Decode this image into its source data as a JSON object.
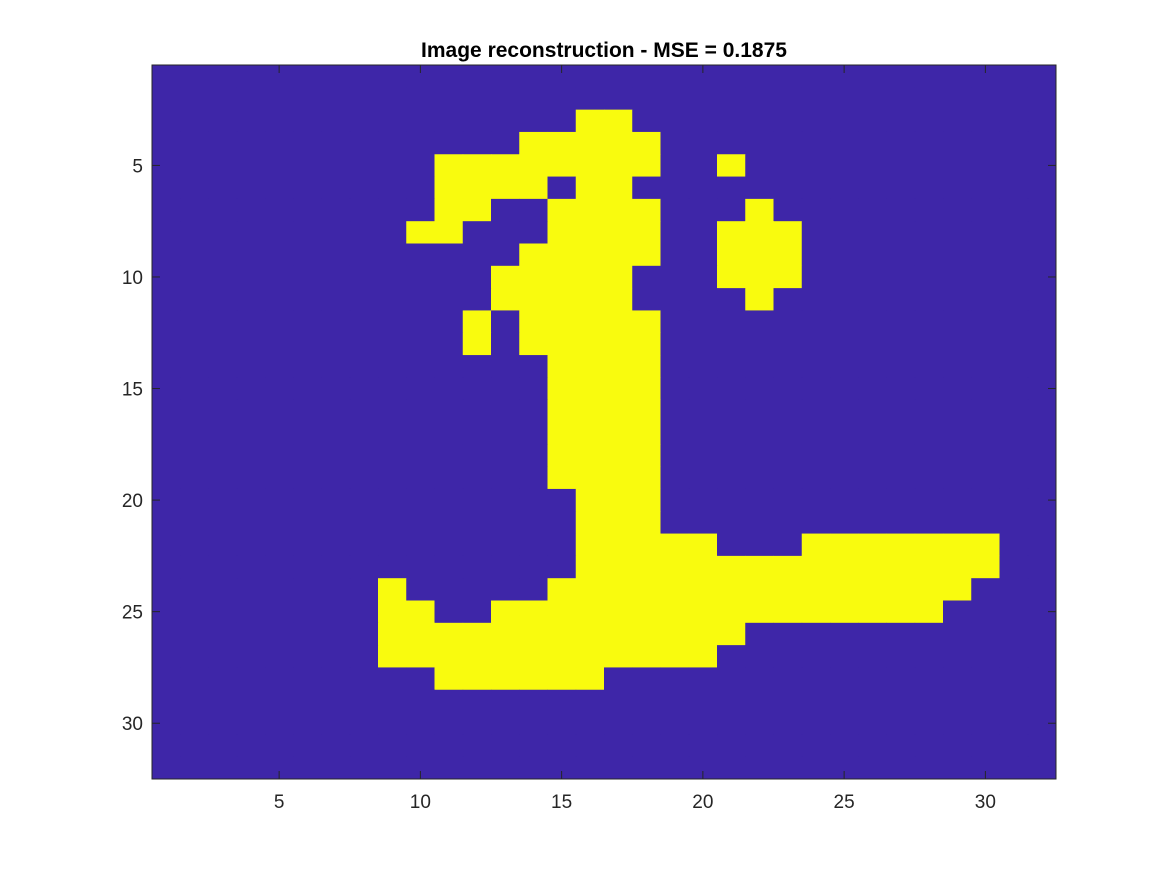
{
  "chart_data": {
    "type": "heatmap",
    "title": "Image reconstruction - MSE  = 0.1875",
    "xlabel": "",
    "ylabel": "",
    "rows": 32,
    "cols": 32,
    "xlim": [
      0.5,
      32.5
    ],
    "ylim": [
      0.5,
      32.5
    ],
    "y_axis_direction": "reversed",
    "x_ticks": [
      5,
      10,
      15,
      20,
      25,
      30
    ],
    "y_ticks": [
      5,
      10,
      15,
      20,
      25,
      30
    ],
    "x_tick_labels": [
      "5",
      "10",
      "15",
      "20",
      "25",
      "30"
    ],
    "y_tick_labels": [
      "5",
      "10",
      "15",
      "20",
      "25",
      "30"
    ],
    "grid": false,
    "legend": "none",
    "colors": {
      "zero": "#3e26a8",
      "one": "#f9fb0e"
    },
    "matrix": [
      "00000000000000000000000000000000",
      "00000000000000000000000000000000",
      "00000000000000011000000000000000",
      "00000000000001111100000000000000",
      "00000000001111111100100000000000",
      "00000000001111011000000000000000",
      "00000000001100111100010000000000",
      "00000000011000111100111000000000",
      "00000000000001111100111000000000",
      "00000000000011111000111000000000",
      "00000000000011111000010000000000",
      "00000000000101111100000000000000",
      "00000000000101111100000000000000",
      "00000000000000111100000000000000",
      "00000000000000111100000000000000",
      "00000000000000111100000000000000",
      "00000000000000111100000000000000",
      "00000000000000111100000000000000",
      "00000000000000111100000000000000",
      "00000000000000011100000000000000",
      "00000000000000011100000000000000",
      "00000000000000011111000111111100",
      "00000000000000011111111111111100",
      "00000000100000111111111111111000",
      "00000000110011111111111111110000",
      "00000000111111111111100000000000",
      "00000000111111111111000000000000",
      "00000000001111110000000000000000",
      "00000000000000000000000000000000",
      "00000000000000000000000000000000",
      "00000000000000000000000000000000",
      "00000000000000000000000000000000"
    ]
  }
}
